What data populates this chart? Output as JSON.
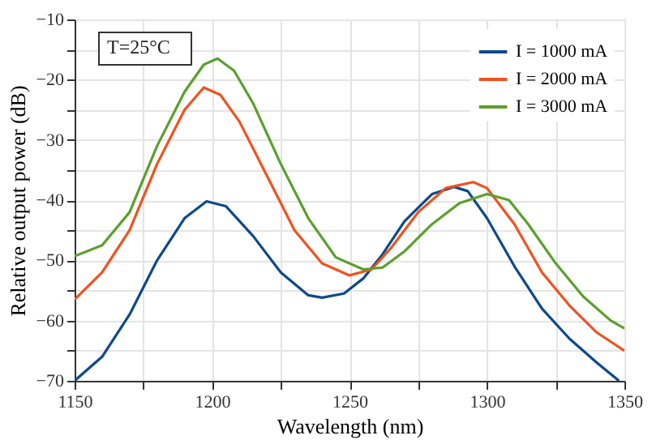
{
  "chart_data": {
    "type": "line",
    "xlabel": "Wavelength (nm)",
    "ylabel": "Relative output power (dB)",
    "annotations": [
      "T=25°C"
    ],
    "xlim": [
      1150,
      1350
    ],
    "ylim": [
      -70,
      -10
    ],
    "xticks": [
      1150,
      {
        "value": 1175,
        "label": null
      },
      1200,
      {
        "value": 1225,
        "label": null
      },
      1250,
      {
        "value": 1275,
        "label": null
      },
      1300,
      {
        "value": 1325,
        "label": null
      },
      1350
    ],
    "yticks": [
      -70,
      {
        "value": -65,
        "label": null
      },
      -60,
      {
        "value": -55,
        "label": null
      },
      -50,
      {
        "value": -45,
        "label": null
      },
      -40,
      {
        "value": -35,
        "label": null
      },
      -30,
      {
        "value": -25,
        "label": null
      },
      -20,
      {
        "value": -15,
        "label": null
      },
      -10
    ],
    "grid": true,
    "legend": "top right",
    "marker": "none",
    "line_style": "solid",
    "series": [
      {
        "name": "I = 1000 mA",
        "color": "#0d4a8a",
        "x": [
          1150,
          1160,
          1170,
          1180,
          1190,
          1198,
          1205,
          1215,
          1225,
          1235,
          1240,
          1248,
          1255,
          1262,
          1270,
          1280,
          1288,
          1293,
          1300,
          1310,
          1320,
          1330,
          1340,
          1348
        ],
        "values": [
          -70,
          -66,
          -59,
          -50,
          -43,
          -40.2,
          -41,
          -46,
          -52,
          -55.8,
          -56.2,
          -55.5,
          -53,
          -49,
          -43.5,
          -39,
          -37.8,
          -38.5,
          -43,
          -51,
          -58,
          -63,
          -67,
          -70
        ]
      },
      {
        "name": "I = 2000 mA",
        "color": "#f0521e",
        "x": [
          1150,
          1160,
          1170,
          1180,
          1190,
          1197,
          1203,
          1210,
          1220,
          1230,
          1240,
          1250,
          1258,
          1265,
          1275,
          1285,
          1295,
          1300,
          1310,
          1320,
          1330,
          1340,
          1350
        ],
        "values": [
          -56.5,
          -52,
          -45,
          -34,
          -25,
          -21.3,
          -22.5,
          -27,
          -36,
          -45,
          -50.5,
          -52.5,
          -51.5,
          -48,
          -42,
          -38,
          -37,
          -38,
          -44,
          -52,
          -57.5,
          -62,
          -65
        ]
      },
      {
        "name": "I = 3000 mA",
        "color": "#5aa02c",
        "x": [
          1150,
          1160,
          1170,
          1180,
          1190,
          1197,
          1202,
          1208,
          1215,
          1225,
          1235,
          1245,
          1255,
          1262,
          1270,
          1280,
          1290,
          1300,
          1308,
          1315,
          1325,
          1335,
          1345,
          1350
        ],
        "values": [
          -49.3,
          -47.5,
          -42,
          -31,
          -22,
          -17.5,
          -16.5,
          -18.5,
          -24,
          -34,
          -43,
          -49.5,
          -51.5,
          -51.2,
          -48.5,
          -44,
          -40.5,
          -39,
          -40,
          -44,
          -50.5,
          -56,
          -60,
          -61.3
        ]
      }
    ]
  }
}
